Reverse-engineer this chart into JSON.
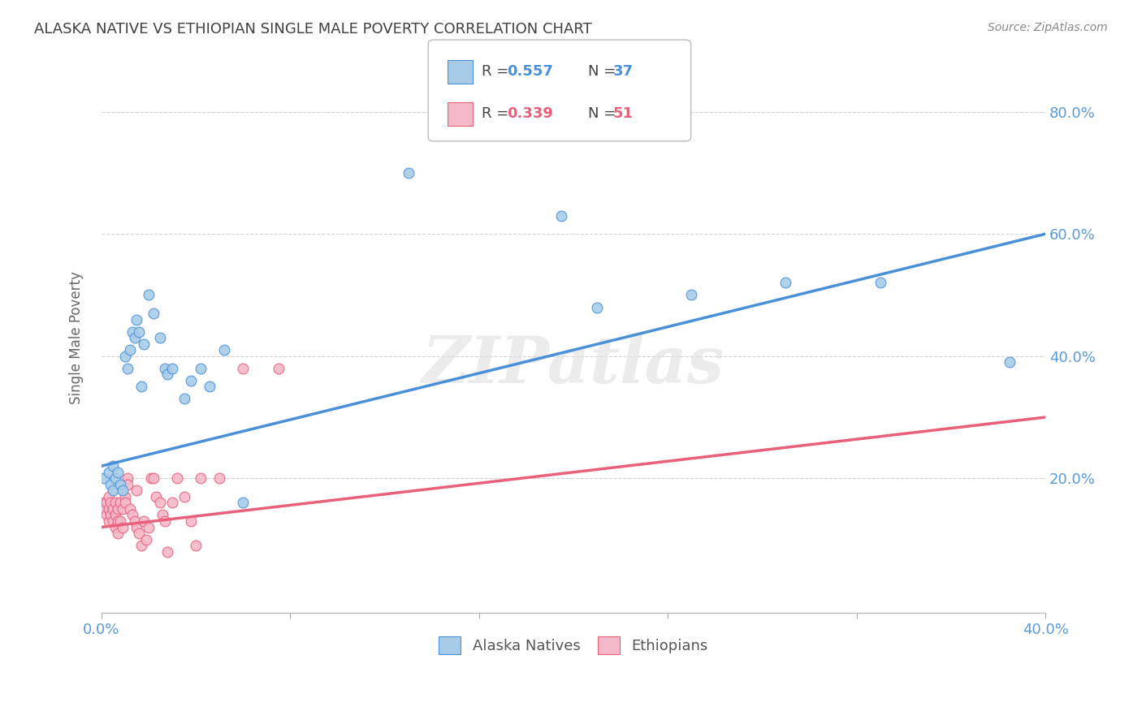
{
  "title": "ALASKA NATIVE VS ETHIOPIAN SINGLE MALE POVERTY CORRELATION CHART",
  "source": "Source: ZipAtlas.com",
  "ylabel": "Single Male Poverty",
  "xlim": [
    0.0,
    0.4
  ],
  "ylim": [
    -0.02,
    0.88
  ],
  "ytick_vals": [
    0.2,
    0.4,
    0.6,
    0.8
  ],
  "xtick_vals": [
    0.0,
    0.08,
    0.16,
    0.24,
    0.32,
    0.4
  ],
  "xtick_labels_show": [
    "0.0%",
    "",
    "",
    "",
    "",
    "40.0%"
  ],
  "alaska_R": 0.557,
  "alaska_N": 37,
  "ethiopian_R": 0.339,
  "ethiopian_N": 51,
  "alaska_color": "#a8cce8",
  "ethiopian_color": "#f5b8c8",
  "alaska_line_color": "#4a90d9",
  "ethiopian_line_color": "#e8607a",
  "watermark": "ZIPatlas",
  "alaska_points": [
    [
      0.001,
      0.2
    ],
    [
      0.003,
      0.21
    ],
    [
      0.004,
      0.19
    ],
    [
      0.005,
      0.22
    ],
    [
      0.005,
      0.18
    ],
    [
      0.006,
      0.2
    ],
    [
      0.007,
      0.21
    ],
    [
      0.008,
      0.19
    ],
    [
      0.009,
      0.18
    ],
    [
      0.01,
      0.4
    ],
    [
      0.011,
      0.38
    ],
    [
      0.012,
      0.41
    ],
    [
      0.013,
      0.44
    ],
    [
      0.014,
      0.43
    ],
    [
      0.015,
      0.46
    ],
    [
      0.016,
      0.44
    ],
    [
      0.017,
      0.35
    ],
    [
      0.018,
      0.42
    ],
    [
      0.02,
      0.5
    ],
    [
      0.022,
      0.47
    ],
    [
      0.025,
      0.43
    ],
    [
      0.027,
      0.38
    ],
    [
      0.028,
      0.37
    ],
    [
      0.03,
      0.38
    ],
    [
      0.035,
      0.33
    ],
    [
      0.038,
      0.36
    ],
    [
      0.042,
      0.38
    ],
    [
      0.046,
      0.35
    ],
    [
      0.052,
      0.41
    ],
    [
      0.06,
      0.16
    ],
    [
      0.13,
      0.7
    ],
    [
      0.195,
      0.63
    ],
    [
      0.21,
      0.48
    ],
    [
      0.25,
      0.5
    ],
    [
      0.29,
      0.52
    ],
    [
      0.33,
      0.52
    ],
    [
      0.385,
      0.39
    ]
  ],
  "ethiopian_points": [
    [
      0.001,
      0.16
    ],
    [
      0.001,
      0.15
    ],
    [
      0.002,
      0.16
    ],
    [
      0.002,
      0.14
    ],
    [
      0.003,
      0.17
    ],
    [
      0.003,
      0.15
    ],
    [
      0.003,
      0.13
    ],
    [
      0.004,
      0.16
    ],
    [
      0.004,
      0.14
    ],
    [
      0.005,
      0.15
    ],
    [
      0.005,
      0.13
    ],
    [
      0.006,
      0.16
    ],
    [
      0.006,
      0.14
    ],
    [
      0.006,
      0.12
    ],
    [
      0.007,
      0.15
    ],
    [
      0.007,
      0.13
    ],
    [
      0.007,
      0.11
    ],
    [
      0.008,
      0.16
    ],
    [
      0.008,
      0.13
    ],
    [
      0.009,
      0.15
    ],
    [
      0.009,
      0.12
    ],
    [
      0.01,
      0.17
    ],
    [
      0.01,
      0.16
    ],
    [
      0.011,
      0.2
    ],
    [
      0.011,
      0.19
    ],
    [
      0.012,
      0.15
    ],
    [
      0.013,
      0.14
    ],
    [
      0.014,
      0.13
    ],
    [
      0.015,
      0.18
    ],
    [
      0.015,
      0.12
    ],
    [
      0.016,
      0.11
    ],
    [
      0.017,
      0.09
    ],
    [
      0.018,
      0.13
    ],
    [
      0.019,
      0.1
    ],
    [
      0.02,
      0.12
    ],
    [
      0.021,
      0.2
    ],
    [
      0.022,
      0.2
    ],
    [
      0.023,
      0.17
    ],
    [
      0.025,
      0.16
    ],
    [
      0.026,
      0.14
    ],
    [
      0.027,
      0.13
    ],
    [
      0.028,
      0.08
    ],
    [
      0.03,
      0.16
    ],
    [
      0.032,
      0.2
    ],
    [
      0.035,
      0.17
    ],
    [
      0.038,
      0.13
    ],
    [
      0.04,
      0.09
    ],
    [
      0.042,
      0.2
    ],
    [
      0.05,
      0.2
    ],
    [
      0.06,
      0.38
    ],
    [
      0.075,
      0.38
    ]
  ],
  "background_color": "#ffffff",
  "grid_color": "#d0d0d0",
  "axis_color": "#5b9bd5",
  "title_color": "#404040",
  "marker_size": 85
}
